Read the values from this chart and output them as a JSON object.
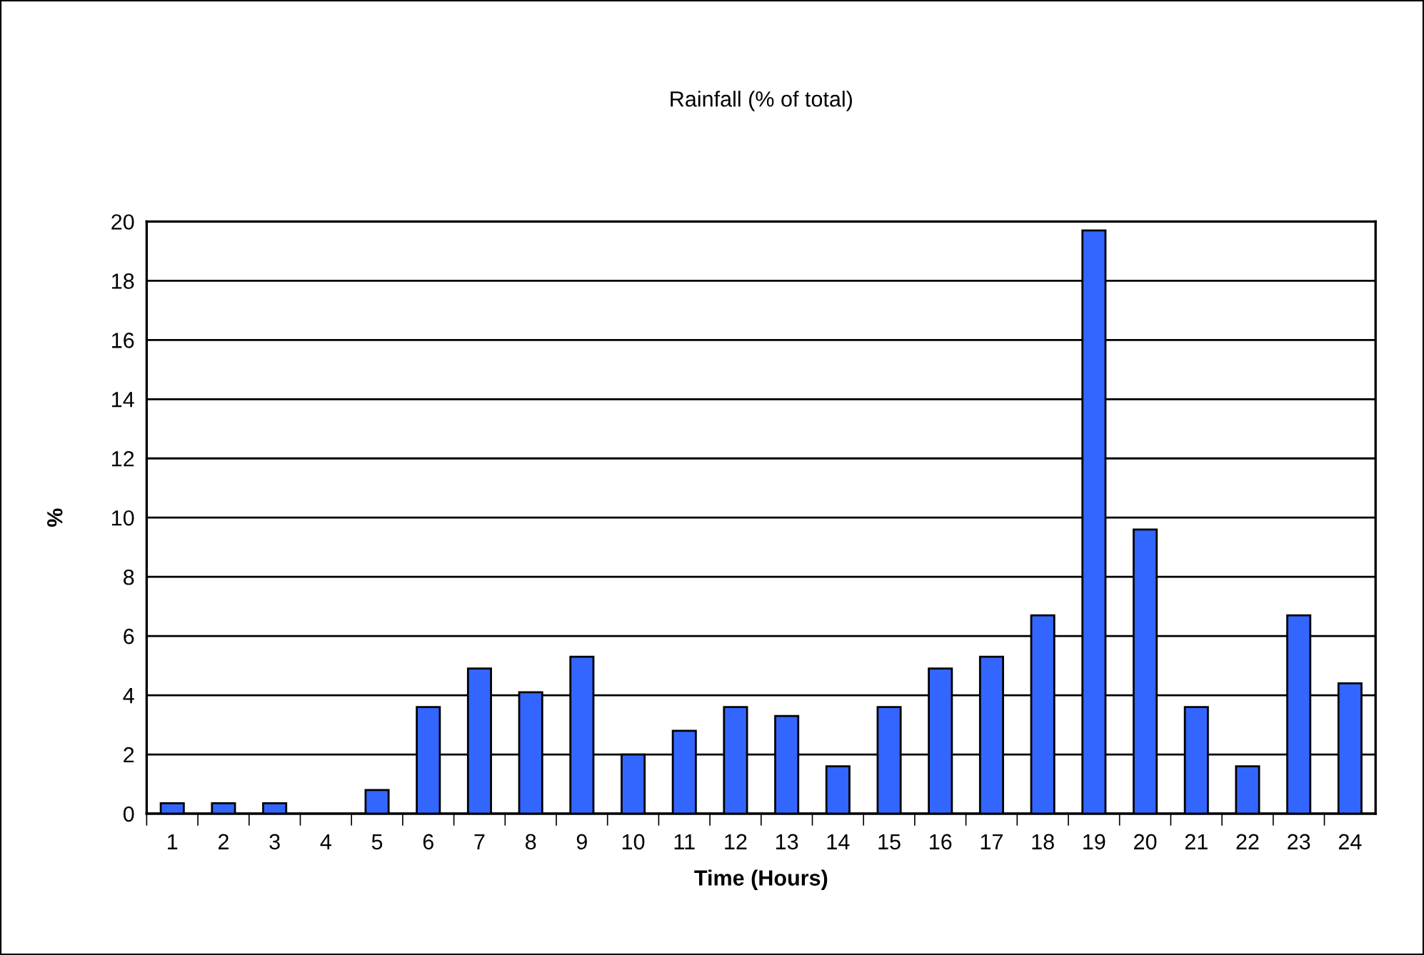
{
  "chart_data": {
    "type": "bar",
    "title": "Rainfall (% of total)",
    "xlabel": "Time (Hours)",
    "ylabel": "%",
    "categories": [
      "1",
      "2",
      "3",
      "4",
      "5",
      "6",
      "7",
      "8",
      "9",
      "10",
      "11",
      "12",
      "13",
      "14",
      "15",
      "16",
      "17",
      "18",
      "19",
      "20",
      "21",
      "22",
      "23",
      "24"
    ],
    "values": [
      0.35,
      0.35,
      0.35,
      0,
      0.8,
      3.6,
      4.9,
      4.1,
      5.3,
      2.0,
      2.8,
      3.6,
      3.3,
      1.6,
      3.6,
      4.9,
      5.3,
      6.7,
      19.7,
      9.6,
      3.6,
      1.6,
      6.7,
      4.4
    ],
    "color": "#3366ff",
    "ylim": [
      0,
      20
    ],
    "yticks": [
      0,
      2,
      4,
      6,
      8,
      10,
      12,
      14,
      16,
      18,
      20
    ],
    "grid": "y",
    "legend": false
  }
}
